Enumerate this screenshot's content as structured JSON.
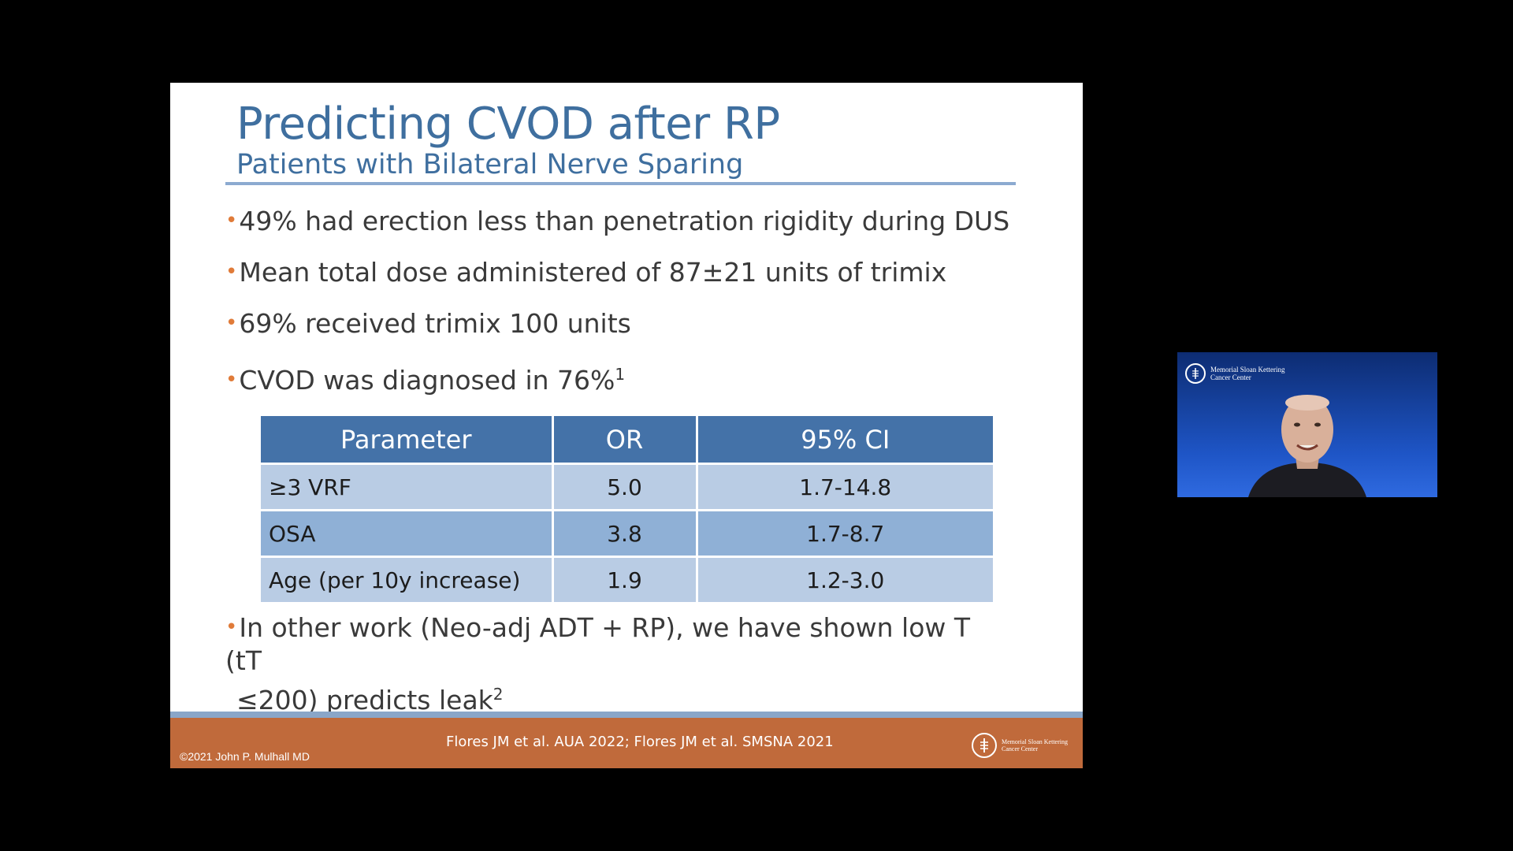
{
  "slide": {
    "title": "Predicting CVOD after RP",
    "subtitle": "Patients with Bilateral Nerve Sparing",
    "bullet_marker": "•",
    "bullets": [
      {
        "text": "49% had erection less than penetration rigidity during DUS",
        "sup": ""
      },
      {
        "text": "Mean total dose administered of 87±21 units of trimix",
        "sup": ""
      },
      {
        "text": "69% received trimix 100 units",
        "sup": ""
      },
      {
        "text": "CVOD was diagnosed in 76%",
        "sup": "1"
      }
    ],
    "last_bullet": {
      "line1": "In other work (Neo-adj ADT + RP), we have shown low T (tT",
      "line2": "≤200) predicts leak",
      "sup": "2"
    },
    "table": {
      "headers": [
        "Parameter",
        "OR",
        "95% CI"
      ],
      "rows": [
        [
          "≥3 VRF",
          "5.0",
          "1.7-14.8"
        ],
        [
          "OSA",
          "3.8",
          "1.7-8.7"
        ],
        [
          "Age (per 10y increase)",
          "1.9",
          "1.2-3.0"
        ]
      ]
    },
    "footer": {
      "copyright": "©2021 John P. Mulhall MD",
      "citation": "Flores JM et al. AUA 2022; Flores JM et al. SMSNA 2021",
      "logo_line1": "Memorial Sloan Kettering",
      "logo_line2": "Cancer Center",
      "logo_icon": "msk-logo-icon"
    }
  },
  "video": {
    "logo_line1": "Memorial Sloan Kettering",
    "logo_line2": "Cancer Center",
    "logo_icon": "msk-logo-icon"
  },
  "colors": {
    "title": "#3f6f9f",
    "bullet_marker": "#e07b39",
    "table_header": "#4472a8",
    "table_row_light": "#b9cce4",
    "table_row_dark": "#8fb0d6",
    "footer": "#c06a3b",
    "footer_stripe": "#8aa6c8"
  }
}
